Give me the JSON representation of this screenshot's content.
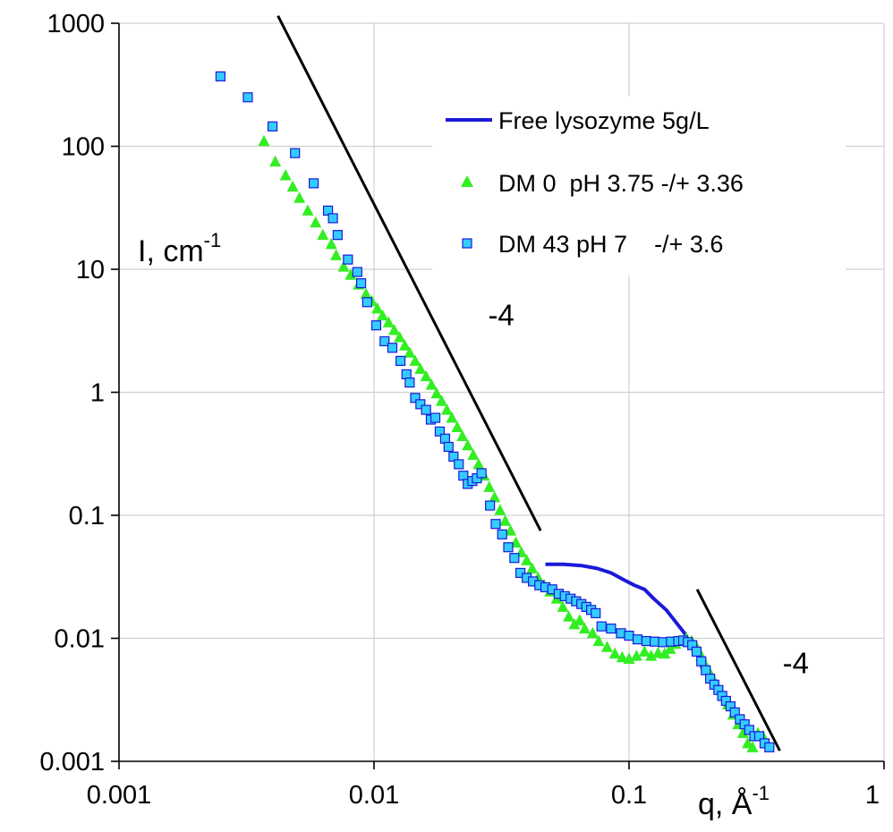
{
  "chart_data": {
    "type": "scatter",
    "title": "",
    "xscale": "log",
    "yscale": "log",
    "xlim": [
      0.001,
      1
    ],
    "ylim": [
      0.001,
      1000
    ],
    "grid": true,
    "legend_position": "top-right",
    "xlabel": {
      "base": "q, Å",
      "sup": "-1"
    },
    "ylabel": {
      "base": "I, cm",
      "sup": "-1"
    },
    "xticks": [
      {
        "value": 0.001,
        "label": "0.001"
      },
      {
        "value": 0.01,
        "label": "0.01"
      },
      {
        "value": 0.1,
        "label": "0.1"
      },
      {
        "value": 1,
        "label": "1"
      }
    ],
    "yticks": [
      {
        "value": 0.001,
        "label": "0.001"
      },
      {
        "value": 0.01,
        "label": "0.01"
      },
      {
        "value": 0.1,
        "label": "0.1"
      },
      {
        "value": 1,
        "label": "1"
      },
      {
        "value": 10,
        "label": "10"
      },
      {
        "value": 100,
        "label": "100"
      },
      {
        "value": 1000,
        "label": "1000"
      }
    ],
    "series": [
      {
        "name": "Free lysozyme 5g/L",
        "kind": "line",
        "color": "#1a1ad9",
        "points": [
          [
            0.047,
            0.04
          ],
          [
            0.055,
            0.04
          ],
          [
            0.065,
            0.039
          ],
          [
            0.075,
            0.037
          ],
          [
            0.085,
            0.034
          ],
          [
            0.095,
            0.03
          ],
          [
            0.105,
            0.027
          ],
          [
            0.115,
            0.025
          ],
          [
            0.125,
            0.021
          ],
          [
            0.14,
            0.017
          ],
          [
            0.155,
            0.013
          ],
          [
            0.165,
            0.011
          ],
          [
            0.175,
            0.009
          ],
          [
            0.185,
            0.0075
          ],
          [
            0.195,
            0.0055
          ]
        ]
      },
      {
        "name": "DM 0  pH 3.75 -/+ 3.36",
        "kind": "scatter",
        "marker": "triangle",
        "color": "#33ee22",
        "points": [
          [
            0.0037,
            110
          ],
          [
            0.0041,
            75
          ],
          [
            0.0045,
            58
          ],
          [
            0.0048,
            47
          ],
          [
            0.0051,
            38
          ],
          [
            0.0055,
            30
          ],
          [
            0.0059,
            24
          ],
          [
            0.0063,
            19
          ],
          [
            0.0068,
            16
          ],
          [
            0.0071,
            13
          ],
          [
            0.0076,
            10.5
          ],
          [
            0.0081,
            9
          ],
          [
            0.0087,
            7.5
          ],
          [
            0.0093,
            6.3
          ],
          [
            0.0098,
            5.5
          ],
          [
            0.0103,
            4.8
          ],
          [
            0.0108,
            4.2
          ],
          [
            0.0114,
            3.7
          ],
          [
            0.012,
            3.2
          ],
          [
            0.0126,
            2.8
          ],
          [
            0.0132,
            2.4
          ],
          [
            0.0138,
            2.1
          ],
          [
            0.0145,
            1.8
          ],
          [
            0.0152,
            1.55
          ],
          [
            0.016,
            1.35
          ],
          [
            0.0168,
            1.15
          ],
          [
            0.0176,
            0.98
          ],
          [
            0.0184,
            0.85
          ],
          [
            0.0193,
            0.72
          ],
          [
            0.0202,
            0.62
          ],
          [
            0.0212,
            0.52
          ],
          [
            0.0222,
            0.44
          ],
          [
            0.0233,
            0.37
          ],
          [
            0.0245,
            0.31
          ],
          [
            0.0257,
            0.26
          ],
          [
            0.027,
            0.21
          ],
          [
            0.0283,
            0.17
          ],
          [
            0.0297,
            0.14
          ],
          [
            0.0312,
            0.11
          ],
          [
            0.0327,
            0.09
          ],
          [
            0.0343,
            0.075
          ],
          [
            0.036,
            0.06
          ],
          [
            0.0378,
            0.05
          ],
          [
            0.0397,
            0.043
          ],
          [
            0.0417,
            0.037
          ],
          [
            0.044,
            0.031
          ],
          [
            0.0465,
            0.027
          ],
          [
            0.049,
            0.024
          ],
          [
            0.052,
            0.021
          ],
          [
            0.055,
            0.018
          ],
          [
            0.058,
            0.015
          ],
          [
            0.061,
            0.013
          ],
          [
            0.064,
            0.014
          ],
          [
            0.067,
            0.012
          ],
          [
            0.072,
            0.011
          ],
          [
            0.076,
            0.0095
          ],
          [
            0.082,
            0.0085
          ],
          [
            0.088,
            0.0075
          ],
          [
            0.094,
            0.007
          ],
          [
            0.1,
            0.0068
          ],
          [
            0.107,
            0.0072
          ],
          [
            0.115,
            0.0078
          ],
          [
            0.122,
            0.0072
          ],
          [
            0.13,
            0.0076
          ],
          [
            0.138,
            0.0075
          ],
          [
            0.145,
            0.0082
          ],
          [
            0.152,
            0.009
          ],
          [
            0.16,
            0.0095
          ],
          [
            0.168,
            0.01
          ],
          [
            0.176,
            0.0095
          ],
          [
            0.184,
            0.0085
          ],
          [
            0.192,
            0.0072
          ],
          [
            0.2,
            0.006
          ],
          [
            0.21,
            0.005
          ],
          [
            0.22,
            0.0042
          ],
          [
            0.232,
            0.0035
          ],
          [
            0.244,
            0.0029
          ],
          [
            0.256,
            0.0024
          ],
          [
            0.268,
            0.002
          ],
          [
            0.28,
            0.0017
          ],
          [
            0.292,
            0.0014
          ],
          [
            0.305,
            0.0013
          ],
          [
            0.32,
            0.0017
          ],
          [
            0.335,
            0.0016
          ]
        ]
      },
      {
        "name": "DM 43 pH 7    -/+ 3.6",
        "kind": "scatter",
        "marker": "square",
        "color": "#33ccff",
        "points": [
          [
            0.0025,
            370
          ],
          [
            0.0032,
            250
          ],
          [
            0.004,
            145
          ],
          [
            0.0049,
            88
          ],
          [
            0.0058,
            50
          ],
          [
            0.0066,
            30
          ],
          [
            0.0069,
            26
          ],
          [
            0.0072,
            19
          ],
          [
            0.0079,
            12
          ],
          [
            0.0086,
            9.5
          ],
          [
            0.0089,
            7.7
          ],
          [
            0.0094,
            5.4
          ],
          [
            0.0102,
            3.5
          ],
          [
            0.011,
            2.6
          ],
          [
            0.0118,
            2.3
          ],
          [
            0.0127,
            1.8
          ],
          [
            0.0134,
            1.4
          ],
          [
            0.0138,
            1.2
          ],
          [
            0.0145,
            0.9
          ],
          [
            0.0152,
            0.8
          ],
          [
            0.016,
            0.72
          ],
          [
            0.0167,
            0.6
          ],
          [
            0.0174,
            0.62
          ],
          [
            0.0181,
            0.48
          ],
          [
            0.019,
            0.42
          ],
          [
            0.0196,
            0.36
          ],
          [
            0.0205,
            0.3
          ],
          [
            0.0215,
            0.26
          ],
          [
            0.0224,
            0.21
          ],
          [
            0.0233,
            0.18
          ],
          [
            0.0243,
            0.19
          ],
          [
            0.0253,
            0.2
          ],
          [
            0.0264,
            0.22
          ],
          [
            0.0285,
            0.12
          ],
          [
            0.03,
            0.085
          ],
          [
            0.0318,
            0.07
          ],
          [
            0.0336,
            0.055
          ],
          [
            0.0355,
            0.045
          ],
          [
            0.0375,
            0.034
          ],
          [
            0.0397,
            0.031
          ],
          [
            0.042,
            0.029
          ],
          [
            0.0445,
            0.027
          ],
          [
            0.047,
            0.026
          ],
          [
            0.05,
            0.025
          ],
          [
            0.053,
            0.023
          ],
          [
            0.056,
            0.022
          ],
          [
            0.059,
            0.021
          ],
          [
            0.062,
            0.02
          ],
          [
            0.065,
            0.019
          ],
          [
            0.068,
            0.018
          ],
          [
            0.071,
            0.017
          ],
          [
            0.074,
            0.016
          ],
          [
            0.078,
            0.0125
          ],
          [
            0.085,
            0.012
          ],
          [
            0.093,
            0.011
          ],
          [
            0.1,
            0.0105
          ],
          [
            0.108,
            0.0098
          ],
          [
            0.117,
            0.0095
          ],
          [
            0.126,
            0.0094
          ],
          [
            0.136,
            0.0093
          ],
          [
            0.146,
            0.0094
          ],
          [
            0.156,
            0.0095
          ],
          [
            0.163,
            0.0096
          ],
          [
            0.17,
            0.0093
          ],
          [
            0.177,
            0.0088
          ],
          [
            0.184,
            0.0078
          ],
          [
            0.192,
            0.0065
          ],
          [
            0.2,
            0.0055
          ],
          [
            0.208,
            0.0047
          ],
          [
            0.216,
            0.0042
          ],
          [
            0.224,
            0.0038
          ],
          [
            0.232,
            0.0034
          ],
          [
            0.24,
            0.0031
          ],
          [
            0.25,
            0.0028
          ],
          [
            0.26,
            0.0025
          ],
          [
            0.272,
            0.0022
          ],
          [
            0.284,
            0.002
          ],
          [
            0.296,
            0.0018
          ],
          [
            0.31,
            0.0016
          ],
          [
            0.324,
            0.0016
          ],
          [
            0.34,
            0.0014
          ],
          [
            0.355,
            0.0013
          ]
        ]
      }
    ],
    "annotations": [
      {
        "text": "-4",
        "kind": "slope-line",
        "line": [
          [
            0.0042,
            1150
          ],
          [
            0.045,
            0.075
          ]
        ],
        "label_at": [
          0.028,
          3.5
        ]
      },
      {
        "text": "-4",
        "kind": "slope-line",
        "line": [
          [
            0.185,
            0.025
          ],
          [
            0.39,
            0.00122
          ]
        ],
        "label_at": [
          0.4,
          0.0052
        ]
      }
    ]
  }
}
